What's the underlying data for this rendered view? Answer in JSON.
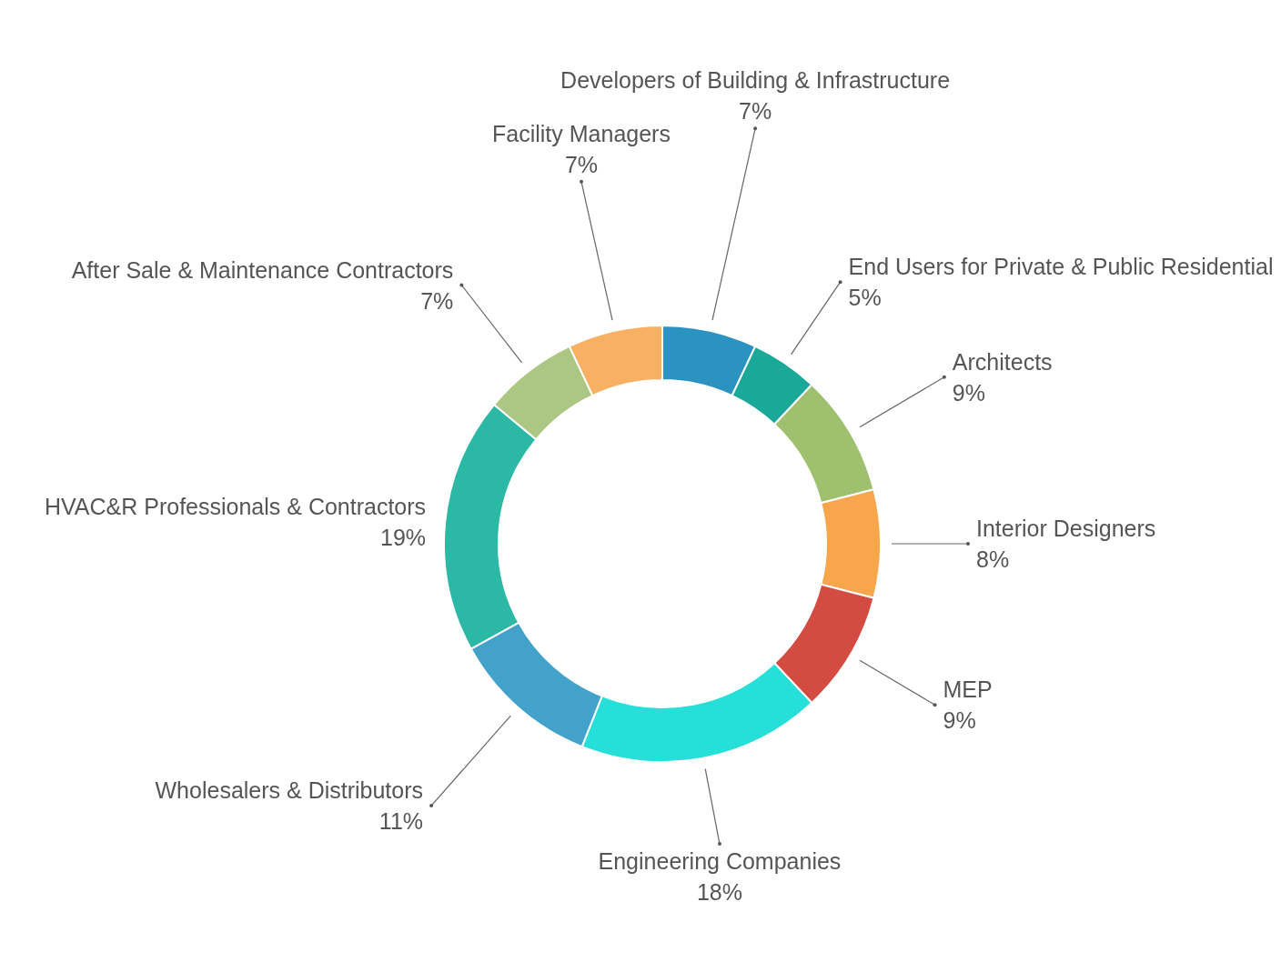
{
  "chart_data": {
    "type": "donut",
    "categories": [
      "Developers of Building & Infrastructure",
      "End Users for Private & Public Residential",
      "Architects",
      "Interior Designers",
      "MEP",
      "Engineering Companies",
      "Wholesalers & Distributors",
      "HVAC&R Professionals & Contractors",
      "After Sale & Maintenance Contractors",
      "Facility Managers"
    ],
    "values": [
      7,
      5,
      9,
      8,
      9,
      18,
      11,
      19,
      7,
      7
    ],
    "value_labels": [
      "7%",
      "5%",
      "9%",
      "8%",
      "9%",
      "18%",
      "11%",
      "19%",
      "7%",
      "7%"
    ],
    "colors": [
      "#2b93c0",
      "#1aa898",
      "#9fc16f",
      "#f8a64c",
      "#d34b41",
      "#26dfd9",
      "#42a2c9",
      "#2bb9a6",
      "#acc684",
      "#f8b062"
    ]
  }
}
